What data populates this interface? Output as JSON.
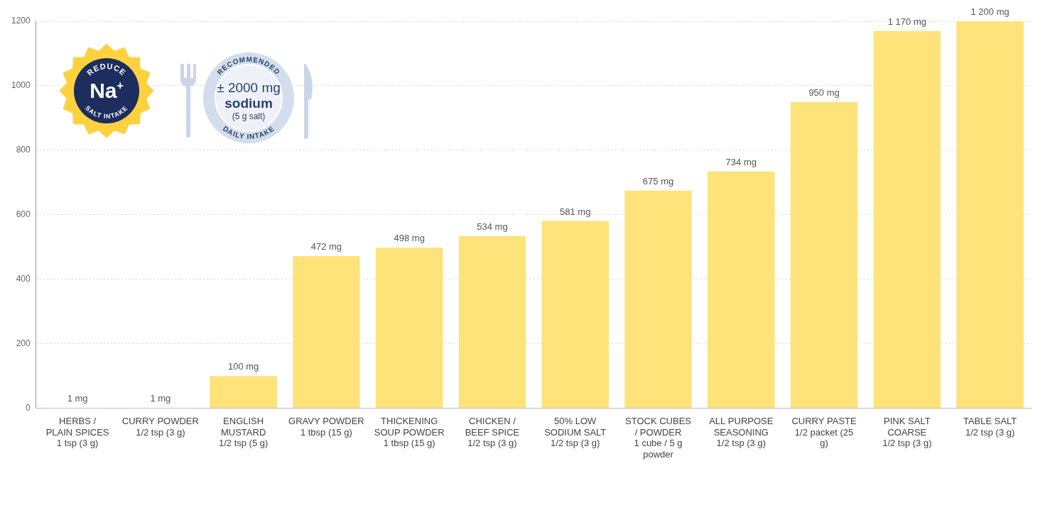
{
  "chart_data": {
    "type": "bar",
    "categories": [
      "HERBS / PLAIN SPICES",
      "CURRY POWDER",
      "ENGLISH MUSTARD",
      "GRAVY POWDER",
      "THICKENING SOUP POWDER",
      "CHICKEN / BEEF SPICE",
      "50% LOW SODIUM SALT",
      "STOCK CUBES / POWDER",
      "ALL PURPOSE SEASONING",
      "CURRY PASTE",
      "PINK SALT COARSE",
      "TABLE SALT"
    ],
    "serving_sizes": [
      "1 tsp (3 g)",
      "1/2 tsp (3 g)",
      "1/2 tsp (5 g)",
      "1 tbsp (15 g)",
      "1 tbsp (15 g)",
      "1/2 tsp (3 g)",
      "1/2 tsp (3 g)",
      "1 cube / 5 g powder",
      "1/2 tsp (3 g)",
      "1/2 packet (25 g)",
      "1/2 tsp (3 g)",
      "1/2 tsp (3 g)"
    ],
    "values": [
      1,
      1,
      100,
      472,
      498,
      534,
      581,
      675,
      734,
      950,
      1170,
      1200
    ],
    "value_labels": [
      "1 mg",
      "1 mg",
      "100 mg",
      "472 mg",
      "498 mg",
      "534 mg",
      "581 mg",
      "675 mg",
      "734 mg",
      "950 mg",
      "1 170 mg",
      "1 200 mg"
    ],
    "color": "#fde37a",
    "ylim": [
      0,
      1200
    ],
    "yticks": [
      0,
      200,
      400,
      600,
      800,
      1000,
      1200
    ],
    "grid": true,
    "data_labels": true,
    "annotations": {
      "reduce_badge": {
        "top": "REDUCE",
        "symbol": "Na+",
        "bottom": "SALT INTAKE"
      },
      "intake_badge": {
        "top": "RECOMMENDED",
        "amount": "± 2000 mg",
        "nutrient": "sodium",
        "note": "(5 g salt)",
        "bottom": "DAILY INTAKE"
      }
    }
  }
}
